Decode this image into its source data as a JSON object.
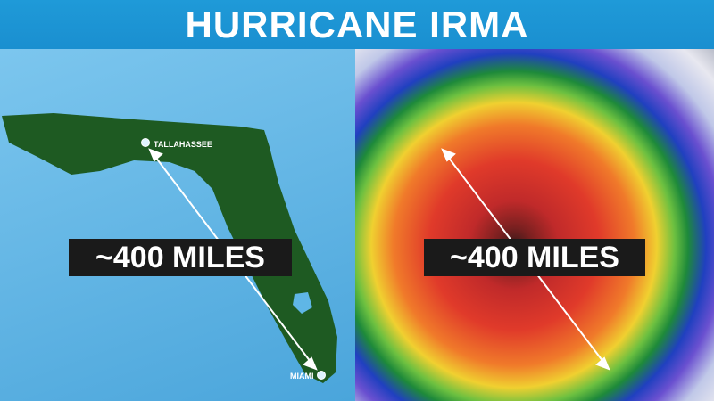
{
  "header": {
    "title": "HURRICANE IRMA"
  },
  "left_panel": {
    "distance_label": "~400 MILES",
    "cities": [
      "TALLAHASSEE",
      "MIAMI"
    ],
    "land_color": "#1e5a22",
    "water_color": "#5fb6e6"
  },
  "right_panel": {
    "distance_label": "~400 MILES"
  }
}
